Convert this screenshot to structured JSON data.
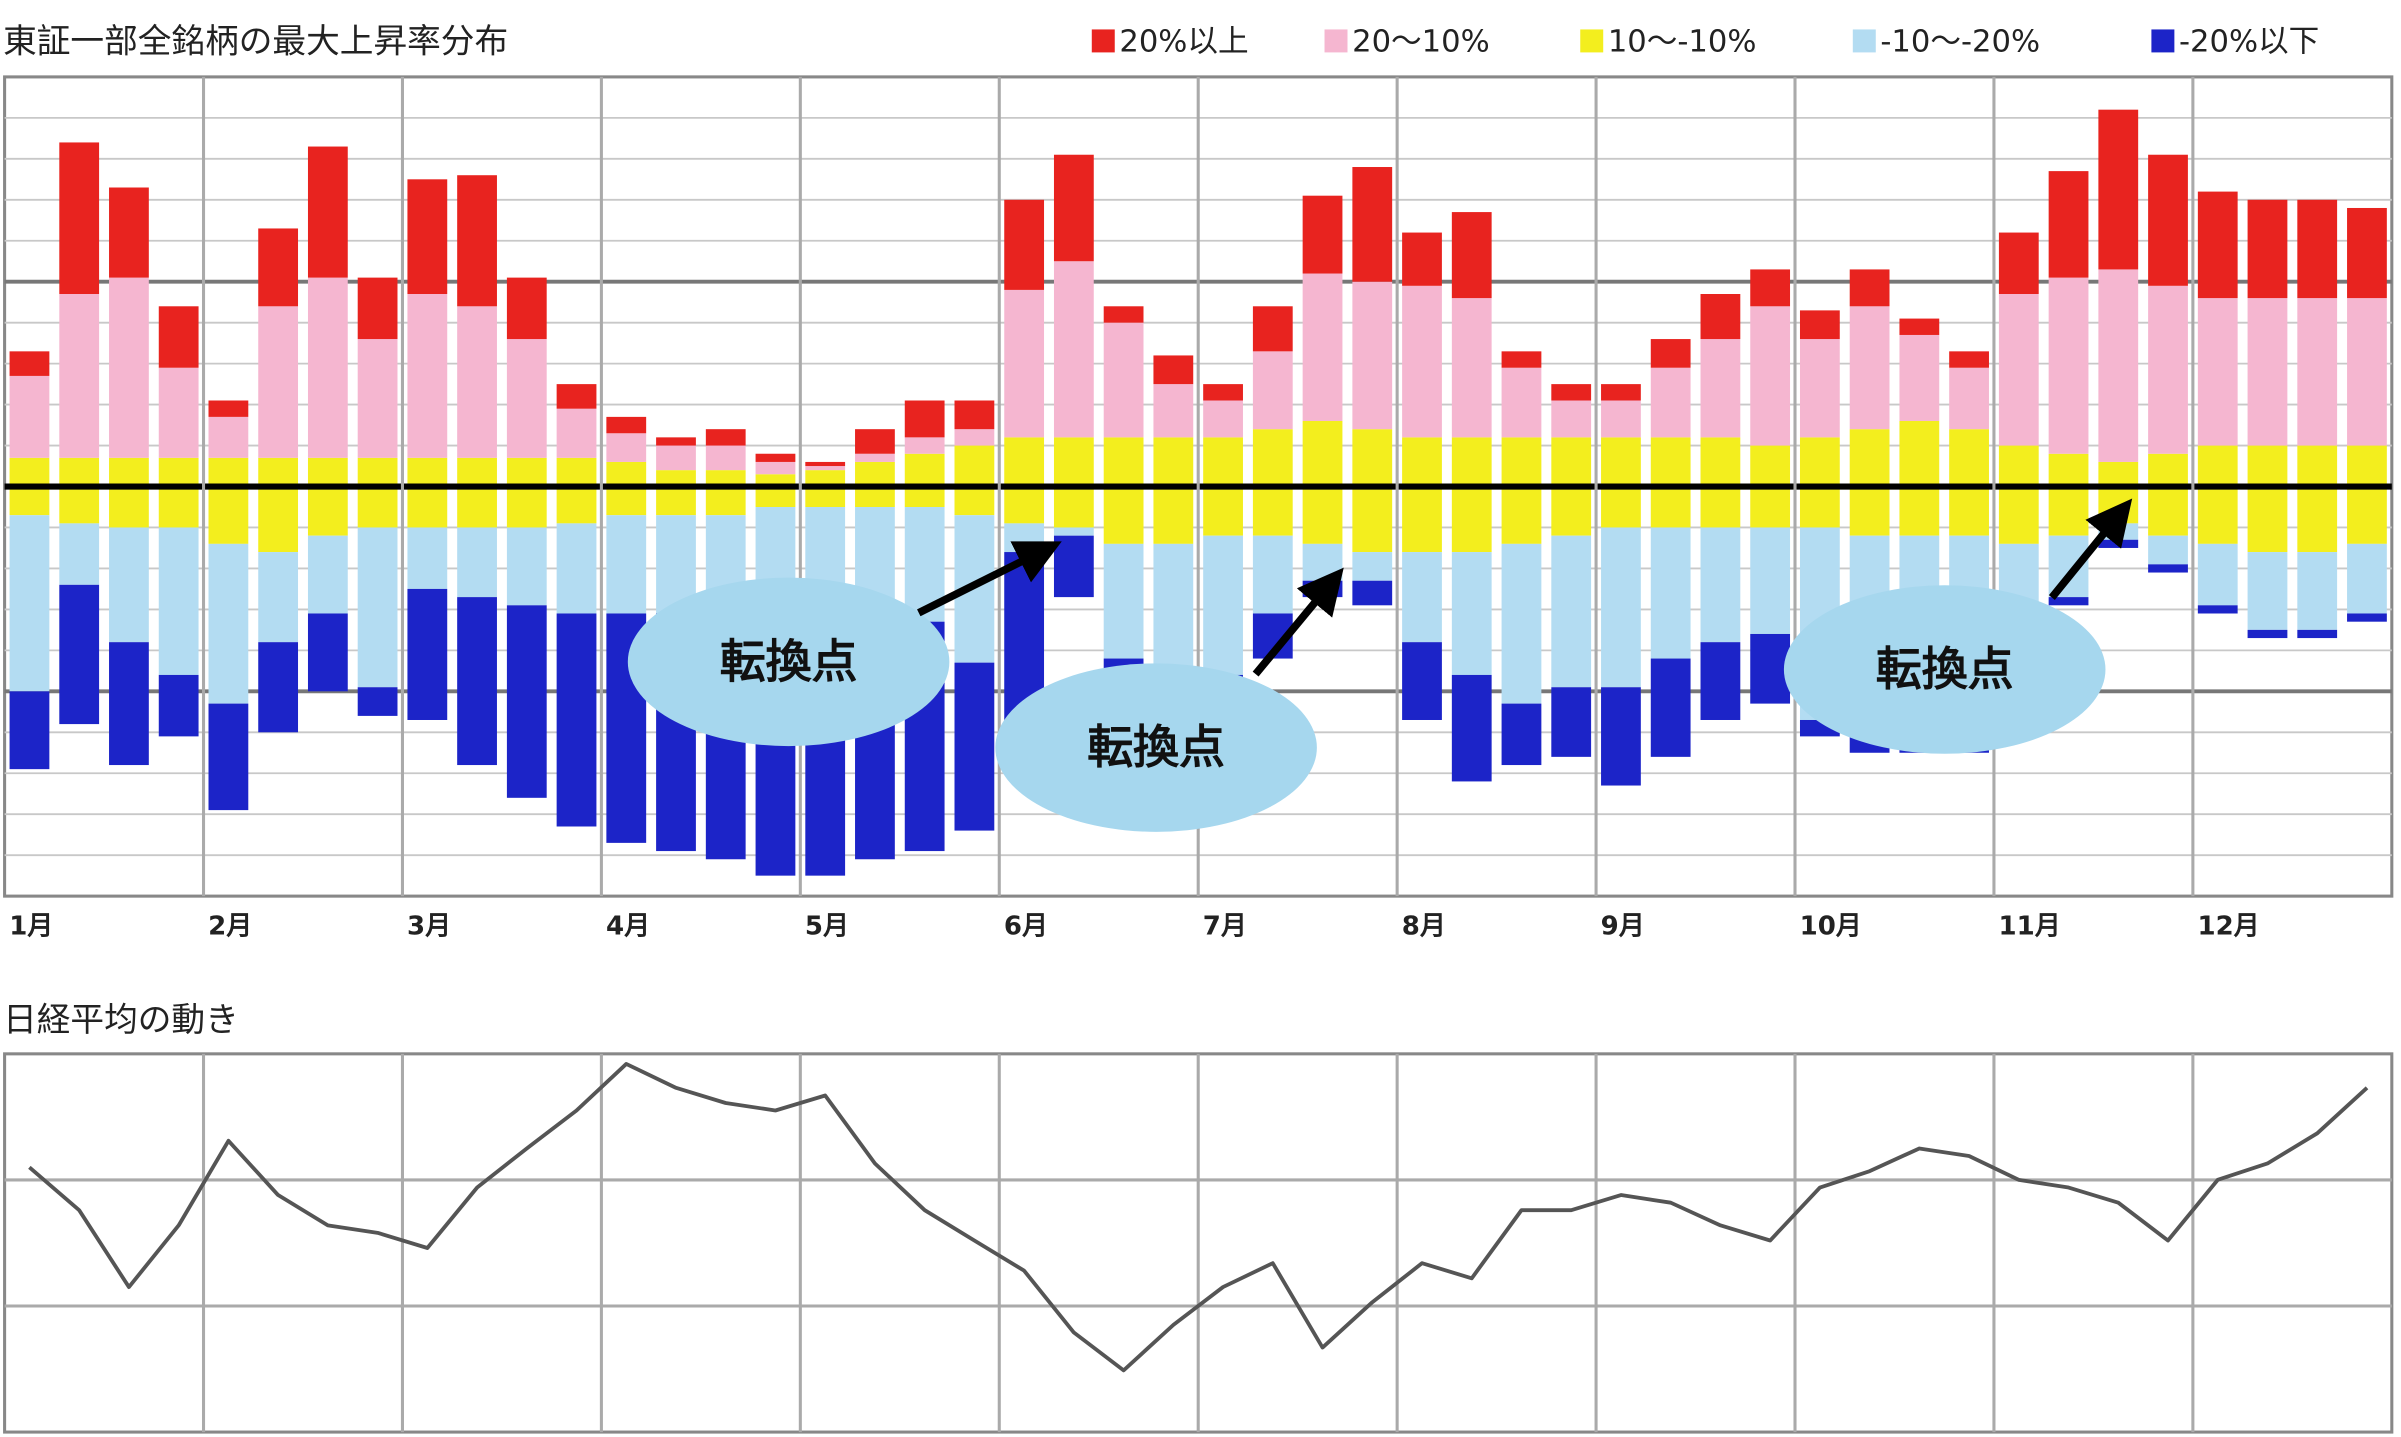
{
  "chart_data": [
    {
      "type": "diverging_stacked_bar",
      "title": "東証一部全銘柄の最大上昇率分布",
      "categories": [
        "1月",
        null,
        null,
        null,
        "2月",
        null,
        null,
        null,
        "3月",
        null,
        null,
        null,
        "4月",
        null,
        null,
        null,
        "5月",
        null,
        null,
        null,
        "6月",
        null,
        null,
        null,
        "7月",
        null,
        null,
        null,
        "8月",
        null,
        null,
        null,
        "9月",
        null,
        null,
        null,
        "10月",
        null,
        null,
        null,
        "11月",
        null,
        null,
        null,
        "12月",
        null,
        null,
        null
      ],
      "ylim": [
        -100,
        100
      ],
      "yticks": [
        -90,
        -80,
        -70,
        -60,
        -50,
        -40,
        -30,
        -20,
        -10,
        0,
        10,
        20,
        30,
        40,
        50,
        60,
        70,
        80,
        90
      ],
      "major_yticks": [
        -50,
        0,
        50
      ],
      "grid": true,
      "legend": "top-right",
      "series": [
        {
          "name": "20%以上",
          "color": "#e8231f",
          "values": [
            6,
            37,
            22,
            15,
            4,
            19,
            32,
            15,
            28,
            32,
            15,
            6,
            4,
            2,
            4,
            2,
            1,
            6,
            9,
            7,
            22,
            26,
            4,
            7,
            4,
            11,
            19,
            28,
            13,
            21,
            4,
            4,
            4,
            7,
            11,
            9,
            7,
            9,
            4,
            4,
            15,
            26,
            39,
            32,
            26,
            24,
            24,
            22
          ]
        },
        {
          "name": "20～10%",
          "color": "#f5b6d0",
          "values": [
            20,
            40,
            44,
            22,
            10,
            37,
            44,
            29,
            40,
            37,
            29,
            12,
            7,
            6,
            6,
            3,
            1,
            2,
            4,
            4,
            36,
            43,
            28,
            13,
            9,
            19,
            36,
            36,
            37,
            34,
            17,
            9,
            9,
            17,
            24,
            34,
            24,
            30,
            21,
            15,
            37,
            43,
            47,
            41,
            36,
            36,
            36,
            36
          ]
        },
        {
          "name": "10～-10%",
          "color": "#f3ee1e",
          "values": [
            7,
            7,
            7,
            7,
            7,
            7,
            7,
            7,
            7,
            7,
            7,
            7,
            6,
            4,
            4,
            3,
            4,
            6,
            8,
            10,
            12,
            12,
            12,
            12,
            12,
            14,
            16,
            14,
            12,
            12,
            12,
            12,
            12,
            12,
            12,
            10,
            12,
            14,
            16,
            14,
            10,
            8,
            6,
            8,
            10,
            10,
            10,
            10
          ],
          "lower_values": [
            -7,
            -9,
            -10,
            -10,
            -14,
            -16,
            -12,
            -10,
            -10,
            -10,
            -10,
            -9,
            -7,
            -7,
            -7,
            -5,
            -5,
            -5,
            -5,
            -7,
            -9,
            -10,
            -14,
            -14,
            -12,
            -12,
            -14,
            -16,
            -16,
            -16,
            -14,
            -12,
            -10,
            -10,
            -10,
            -10,
            -10,
            -12,
            -12,
            -12,
            -14,
            -12,
            -9,
            -12,
            -14,
            -16,
            -16,
            -14
          ]
        },
        {
          "name": "-10～-20%",
          "color": "#b3dcf2",
          "values": [
            -43,
            -15,
            -28,
            -36,
            -39,
            -22,
            -19,
            -39,
            -15,
            -17,
            -19,
            -22,
            -24,
            -24,
            -24,
            -26,
            -26,
            -26,
            -28,
            -36,
            -7,
            -2,
            -28,
            -32,
            -34,
            -19,
            -9,
            -7,
            -22,
            -30,
            -39,
            -37,
            -39,
            -32,
            -28,
            -26,
            -47,
            -49,
            -51,
            -49,
            -24,
            -15,
            -4,
            -7,
            -15,
            -19,
            -19,
            -17
          ]
        },
        {
          "name": "-20%以下",
          "color": "#1c24c8",
          "values": [
            -19,
            -34,
            -30,
            -15,
            -26,
            -22,
            -19,
            -7,
            -32,
            -41,
            -47,
            -52,
            -56,
            -58,
            -60,
            -64,
            -64,
            -60,
            -56,
            -41,
            -52,
            -15,
            -4,
            -2,
            -2,
            -11,
            -4,
            -6,
            -19,
            -26,
            -15,
            -17,
            -24,
            -24,
            -19,
            -17,
            -4,
            -4,
            -2,
            -4,
            -1,
            -2,
            -2,
            -2,
            -2,
            -2,
            -2,
            -2
          ]
        }
      ],
      "annotations": [
        {
          "text": "転換点"
        },
        {
          "text": "転換点"
        },
        {
          "text": "転換点"
        }
      ]
    },
    {
      "type": "line",
      "title": "日経平均の動き",
      "color": "#555555",
      "categories": [
        null,
        null,
        null,
        null,
        null,
        null,
        null,
        null,
        null,
        null,
        null,
        null,
        null,
        null,
        null,
        null,
        null,
        null,
        null,
        null,
        null,
        null,
        null,
        null,
        null,
        null,
        null,
        null,
        null,
        null,
        null,
        null,
        null,
        null,
        null,
        null,
        null,
        null,
        null,
        null,
        null,
        null,
        null,
        null,
        null,
        null,
        null,
        null
      ],
      "values": [
        2.1,
        1.76,
        1.15,
        1.64,
        2.31,
        1.88,
        1.64,
        1.58,
        1.46,
        1.94,
        2.25,
        2.55,
        2.92,
        2.73,
        2.61,
        2.55,
        2.67,
        2.13,
        1.76,
        1.52,
        1.28,
        0.79,
        0.49,
        0.85,
        1.15,
        1.34,
        0.67,
        1.03,
        1.34,
        1.22,
        1.76,
        1.76,
        1.88,
        1.82,
        1.64,
        1.52,
        1.94,
        2.07,
        2.25,
        2.19,
        2.0,
        1.94,
        1.82,
        1.52,
        2.0,
        2.13,
        2.37,
        2.73
      ],
      "ylim": [
        0,
        3
      ],
      "yticks": [
        1,
        2
      ],
      "grid": true
    }
  ]
}
